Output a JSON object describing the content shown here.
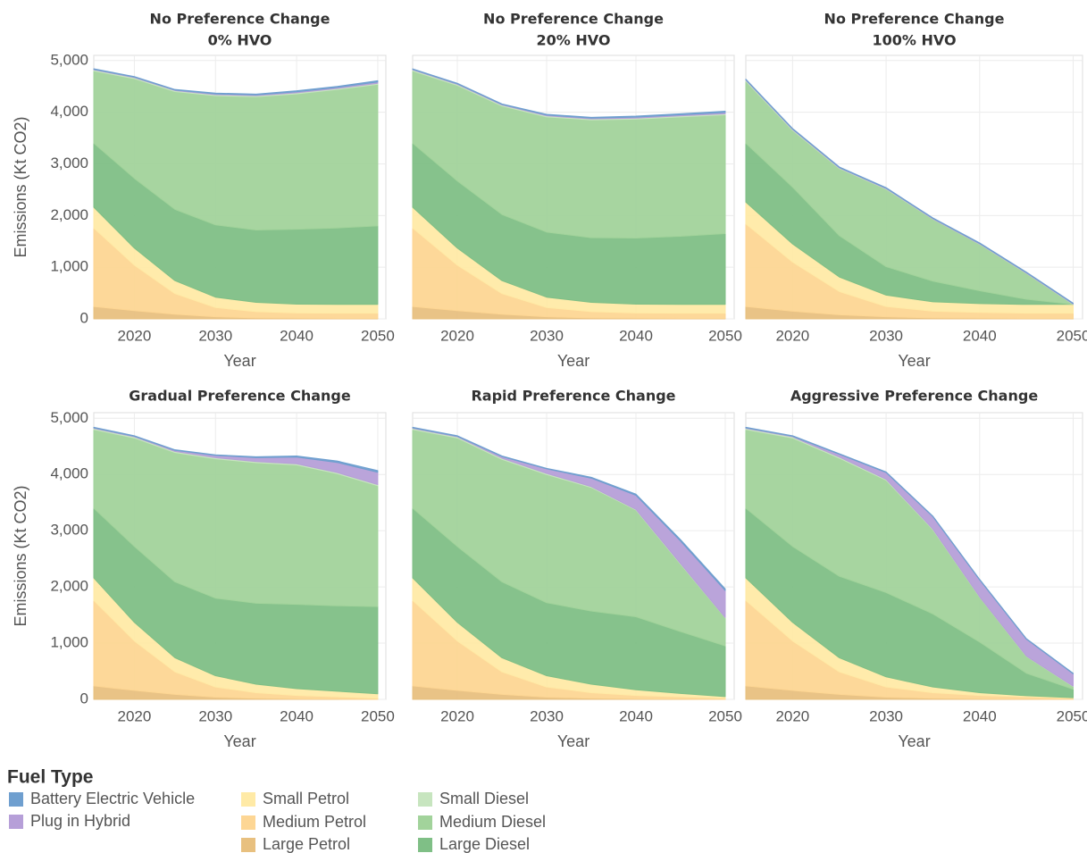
{
  "legend_title": "Fuel Type",
  "chart_data": [
    {
      "type": "area",
      "title": "No Preference Change",
      "subtitle": "0% HVO",
      "xlabel": "Year",
      "ylabel": "Emissions (Kt CO2)",
      "x": [
        2015,
        2020,
        2025,
        2030,
        2035,
        2040,
        2045,
        2050
      ],
      "xlim": [
        2015,
        2051
      ],
      "xticks": [
        2020,
        2030,
        2040,
        2050
      ],
      "ylim": [
        0,
        5100
      ],
      "yticks": [
        0,
        {
          "value": 1000,
          "label": "1,000"
        },
        {
          "value": 2000,
          "label": "2,000"
        },
        {
          "value": 3000,
          "label": "3,000"
        },
        {
          "value": 4000,
          "label": "4,000"
        },
        {
          "value": 5000,
          "label": "5,000"
        }
      ],
      "grid": true,
      "series": [
        {
          "name": "Large Petrol",
          "color": "#e8c07f",
          "values": [
            240,
            160,
            90,
            40,
            20,
            15,
            10,
            10
          ]
        },
        {
          "name": "Medium Petrol",
          "color": "#fdd694",
          "values": [
            1520,
            880,
            400,
            180,
            120,
            100,
            100,
            100
          ]
        },
        {
          "name": "Small Petrol",
          "color": "#ffeaa6",
          "values": [
            400,
            330,
            250,
            200,
            180,
            170,
            170,
            170
          ]
        },
        {
          "name": "Large Diesel",
          "color": "#7fbf86",
          "values": [
            1240,
            1350,
            1380,
            1400,
            1400,
            1450,
            1480,
            1520
          ]
        },
        {
          "name": "Medium Diesel",
          "color": "#a2d39b",
          "values": [
            1400,
            1930,
            2280,
            2500,
            2580,
            2620,
            2680,
            2740
          ]
        },
        {
          "name": "Small Diesel",
          "color": "#c7e5bf",
          "values": [
            20,
            20,
            20,
            20,
            20,
            20,
            20,
            20
          ]
        },
        {
          "name": "Plug in Hybrid",
          "color": "#b69fd8",
          "values": [
            10,
            10,
            10,
            15,
            15,
            20,
            20,
            25
          ]
        },
        {
          "name": "Battery Electric Vehicle",
          "color": "#6f9fcf",
          "values": [
            10,
            10,
            10,
            15,
            15,
            20,
            20,
            25
          ]
        }
      ]
    },
    {
      "type": "area",
      "title": "No Preference Change",
      "subtitle": "20% HVO",
      "xlabel": "Year",
      "x": [
        2015,
        2020,
        2025,
        2030,
        2035,
        2040,
        2045,
        2050
      ],
      "xlim": [
        2015,
        2051
      ],
      "xticks": [
        2020,
        2030,
        2040,
        2050
      ],
      "ylim": [
        0,
        5100
      ],
      "yticks": [
        0,
        1000,
        2000,
        3000,
        4000,
        5000
      ],
      "grid": true,
      "series": [
        {
          "name": "Large Petrol",
          "color": "#e8c07f",
          "values": [
            240,
            160,
            90,
            40,
            20,
            15,
            10,
            10
          ]
        },
        {
          "name": "Medium Petrol",
          "color": "#fdd694",
          "values": [
            1520,
            880,
            400,
            180,
            120,
            100,
            100,
            100
          ]
        },
        {
          "name": "Small Petrol",
          "color": "#ffeaa6",
          "values": [
            400,
            330,
            250,
            200,
            180,
            170,
            170,
            170
          ]
        },
        {
          "name": "Large Diesel",
          "color": "#7fbf86",
          "values": [
            1240,
            1300,
            1280,
            1260,
            1250,
            1280,
            1320,
            1370
          ]
        },
        {
          "name": "Medium Diesel",
          "color": "#a2d39b",
          "values": [
            1400,
            1850,
            2100,
            2230,
            2280,
            2300,
            2310,
            2300
          ]
        },
        {
          "name": "Small Diesel",
          "color": "#c7e5bf",
          "values": [
            20,
            20,
            20,
            20,
            20,
            20,
            20,
            20
          ]
        },
        {
          "name": "Plug in Hybrid",
          "color": "#b69fd8",
          "values": [
            10,
            10,
            10,
            15,
            15,
            20,
            20,
            25
          ]
        },
        {
          "name": "Battery Electric Vehicle",
          "color": "#6f9fcf",
          "values": [
            10,
            10,
            10,
            15,
            15,
            20,
            20,
            25
          ]
        }
      ]
    },
    {
      "type": "area",
      "title": "No Preference Change",
      "subtitle": "100% HVO",
      "xlabel": "Year",
      "x": [
        2015,
        2020,
        2025,
        2030,
        2035,
        2040,
        2045,
        2050
      ],
      "xlim": [
        2015,
        2051
      ],
      "xticks": [
        2020,
        2030,
        2040,
        2050
      ],
      "ylim": [
        0,
        5100
      ],
      "yticks": [
        0,
        1000,
        2000,
        3000,
        4000,
        5000
      ],
      "grid": true,
      "series": [
        {
          "name": "Large Petrol",
          "color": "#e8c07f",
          "values": [
            240,
            150,
            80,
            40,
            20,
            15,
            10,
            10
          ]
        },
        {
          "name": "Medium Petrol",
          "color": "#fdd694",
          "values": [
            1600,
            950,
            450,
            200,
            130,
            110,
            100,
            100
          ]
        },
        {
          "name": "Small Petrol",
          "color": "#ffeaa6",
          "values": [
            420,
            350,
            280,
            220,
            180,
            170,
            170,
            170
          ]
        },
        {
          "name": "Large Diesel",
          "color": "#7fbf86",
          "values": [
            1140,
            1100,
            800,
            550,
            400,
            250,
            100,
            0
          ]
        },
        {
          "name": "Medium Diesel",
          "color": "#a2d39b",
          "values": [
            1200,
            1100,
            1300,
            1500,
            1200,
            900,
            500,
            0
          ]
        },
        {
          "name": "Small Diesel",
          "color": "#c7e5bf",
          "values": [
            20,
            15,
            10,
            10,
            5,
            5,
            5,
            5
          ]
        },
        {
          "name": "Plug in Hybrid",
          "color": "#b69fd8",
          "values": [
            10,
            10,
            10,
            10,
            10,
            10,
            10,
            10
          ]
        },
        {
          "name": "Battery Electric Vehicle",
          "color": "#6f9fcf",
          "values": [
            10,
            10,
            10,
            10,
            10,
            10,
            10,
            10
          ]
        }
      ]
    },
    {
      "type": "area",
      "title": "Gradual Preference Change",
      "xlabel": "Year",
      "ylabel": "Emissions (Kt CO2)",
      "x": [
        2015,
        2020,
        2025,
        2030,
        2035,
        2040,
        2045,
        2050
      ],
      "xlim": [
        2015,
        2051
      ],
      "xticks": [
        2020,
        2030,
        2040,
        2050
      ],
      "ylim": [
        0,
        5100
      ],
      "yticks": [
        0,
        {
          "value": 1000,
          "label": "1,000"
        },
        {
          "value": 2000,
          "label": "2,000"
        },
        {
          "value": 3000,
          "label": "3,000"
        },
        {
          "value": 4000,
          "label": "4,000"
        },
        {
          "value": 5000,
          "label": "5,000"
        }
      ],
      "grid": true,
      "series": [
        {
          "name": "Large Petrol",
          "color": "#e8c07f",
          "values": [
            240,
            160,
            90,
            40,
            20,
            10,
            5,
            0
          ]
        },
        {
          "name": "Medium Petrol",
          "color": "#fdd694",
          "values": [
            1520,
            880,
            400,
            180,
            100,
            60,
            40,
            20
          ]
        },
        {
          "name": "Small Petrol",
          "color": "#ffeaa6",
          "values": [
            400,
            330,
            250,
            200,
            150,
            120,
            100,
            80
          ]
        },
        {
          "name": "Large Diesel",
          "color": "#7fbf86",
          "values": [
            1240,
            1350,
            1350,
            1380,
            1440,
            1500,
            1520,
            1550
          ]
        },
        {
          "name": "Medium Diesel",
          "color": "#a2d39b",
          "values": [
            1400,
            1930,
            2300,
            2480,
            2500,
            2480,
            2350,
            2150
          ]
        },
        {
          "name": "Small Diesel",
          "color": "#c7e5bf",
          "values": [
            20,
            20,
            20,
            20,
            20,
            20,
            20,
            20
          ]
        },
        {
          "name": "Plug in Hybrid",
          "color": "#b69fd8",
          "values": [
            10,
            10,
            20,
            40,
            70,
            120,
            180,
            220
          ]
        },
        {
          "name": "Battery Electric Vehicle",
          "color": "#6f9fcf",
          "values": [
            10,
            10,
            10,
            10,
            15,
            20,
            25,
            30
          ]
        }
      ]
    },
    {
      "type": "area",
      "title": "Rapid Preference Change",
      "xlabel": "Year",
      "x": [
        2015,
        2020,
        2025,
        2030,
        2035,
        2040,
        2045,
        2050
      ],
      "xlim": [
        2015,
        2051
      ],
      "xticks": [
        2020,
        2030,
        2040,
        2050
      ],
      "ylim": [
        0,
        5100
      ],
      "yticks": [
        0,
        1000,
        2000,
        3000,
        4000,
        5000
      ],
      "grid": true,
      "series": [
        {
          "name": "Large Petrol",
          "color": "#e8c07f",
          "values": [
            240,
            160,
            90,
            40,
            20,
            10,
            5,
            0
          ]
        },
        {
          "name": "Medium Petrol",
          "color": "#fdd694",
          "values": [
            1520,
            880,
            400,
            180,
            100,
            60,
            40,
            20
          ]
        },
        {
          "name": "Small Petrol",
          "color": "#ffeaa6",
          "values": [
            400,
            330,
            250,
            200,
            150,
            100,
            60,
            30
          ]
        },
        {
          "name": "Large Diesel",
          "color": "#7fbf86",
          "values": [
            1240,
            1350,
            1350,
            1300,
            1300,
            1300,
            1100,
            900
          ]
        },
        {
          "name": "Medium Diesel",
          "color": "#a2d39b",
          "values": [
            1400,
            1930,
            2180,
            2280,
            2200,
            1900,
            1200,
            500
          ]
        },
        {
          "name": "Small Diesel",
          "color": "#c7e5bf",
          "values": [
            20,
            20,
            20,
            20,
            15,
            10,
            10,
            5
          ]
        },
        {
          "name": "Plug in Hybrid",
          "color": "#b69fd8",
          "values": [
            10,
            10,
            30,
            80,
            150,
            250,
            400,
            480
          ]
        },
        {
          "name": "Battery Electric Vehicle",
          "color": "#6f9fcf",
          "values": [
            10,
            10,
            10,
            10,
            15,
            20,
            25,
            30
          ]
        }
      ]
    },
    {
      "type": "area",
      "title": "Aggressive Preference Change",
      "xlabel": "Year",
      "x": [
        2015,
        2020,
        2025,
        2030,
        2035,
        2040,
        2045,
        2050
      ],
      "xlim": [
        2015,
        2051
      ],
      "xticks": [
        2020,
        2030,
        2040,
        2050
      ],
      "ylim": [
        0,
        5100
      ],
      "yticks": [
        0,
        1000,
        2000,
        3000,
        4000,
        5000
      ],
      "grid": true,
      "series": [
        {
          "name": "Large Petrol",
          "color": "#e8c07f",
          "values": [
            240,
            160,
            90,
            40,
            20,
            10,
            5,
            0
          ]
        },
        {
          "name": "Medium Petrol",
          "color": "#fdd694",
          "values": [
            1520,
            880,
            400,
            180,
            100,
            60,
            40,
            20
          ]
        },
        {
          "name": "Small Petrol",
          "color": "#ffeaa6",
          "values": [
            400,
            330,
            250,
            180,
            100,
            50,
            20,
            10
          ]
        },
        {
          "name": "Large Diesel",
          "color": "#7fbf86",
          "values": [
            1240,
            1350,
            1450,
            1500,
            1300,
            900,
            400,
            150
          ]
        },
        {
          "name": "Medium Diesel",
          "color": "#a2d39b",
          "values": [
            1400,
            1930,
            2100,
            2000,
            1500,
            800,
            300,
            50
          ]
        },
        {
          "name": "Small Diesel",
          "color": "#c7e5bf",
          "values": [
            20,
            20,
            20,
            15,
            10,
            5,
            5,
            5
          ]
        },
        {
          "name": "Plug in Hybrid",
          "color": "#b69fd8",
          "values": [
            10,
            10,
            50,
            120,
            220,
            300,
            300,
            220
          ]
        },
        {
          "name": "Battery Electric Vehicle",
          "color": "#6f9fcf",
          "values": [
            10,
            10,
            10,
            10,
            10,
            10,
            10,
            10
          ]
        }
      ]
    }
  ]
}
